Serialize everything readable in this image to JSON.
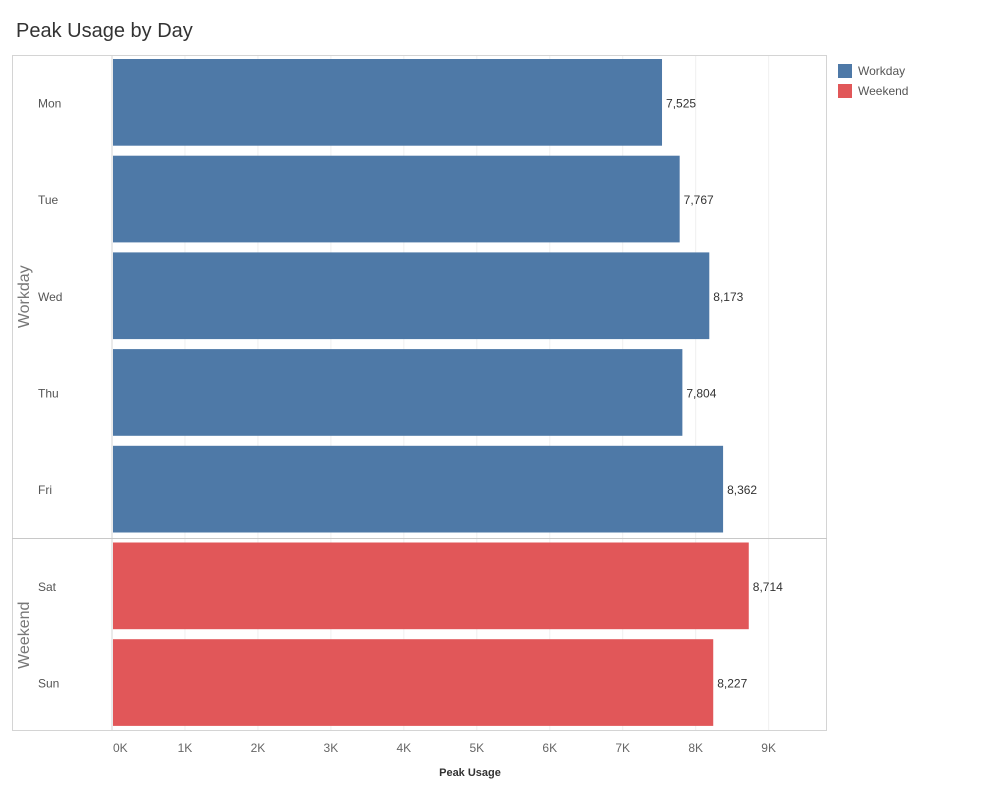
{
  "title": "Peak Usage by Day",
  "legend": [
    {
      "label": "Workday",
      "color": "#4e79a7"
    },
    {
      "label": "Weekend",
      "color": "#e15759"
    }
  ],
  "chart_data": {
    "type": "bar",
    "orientation": "horizontal",
    "title": "Peak Usage by Day",
    "xlabel": "Peak Usage",
    "xlim": [
      0,
      9800
    ],
    "x_ticks": [
      "0K",
      "1K",
      "2K",
      "3K",
      "4K",
      "5K",
      "6K",
      "7K",
      "8K",
      "9K"
    ],
    "grid": true,
    "legend_position": "right",
    "groups": [
      {
        "name": "Workday",
        "color": "#4e79a7",
        "categories": [
          "Mon",
          "Tue",
          "Wed",
          "Thu",
          "Fri"
        ],
        "values": [
          7525,
          7767,
          8173,
          7804,
          8362
        ],
        "labels": [
          "7,525",
          "7,767",
          "8,173",
          "7,804",
          "8,362"
        ]
      },
      {
        "name": "Weekend",
        "color": "#e15759",
        "categories": [
          "Sat",
          "Sun"
        ],
        "values": [
          8714,
          8227
        ],
        "labels": [
          "8,714",
          "8,227"
        ]
      }
    ]
  }
}
